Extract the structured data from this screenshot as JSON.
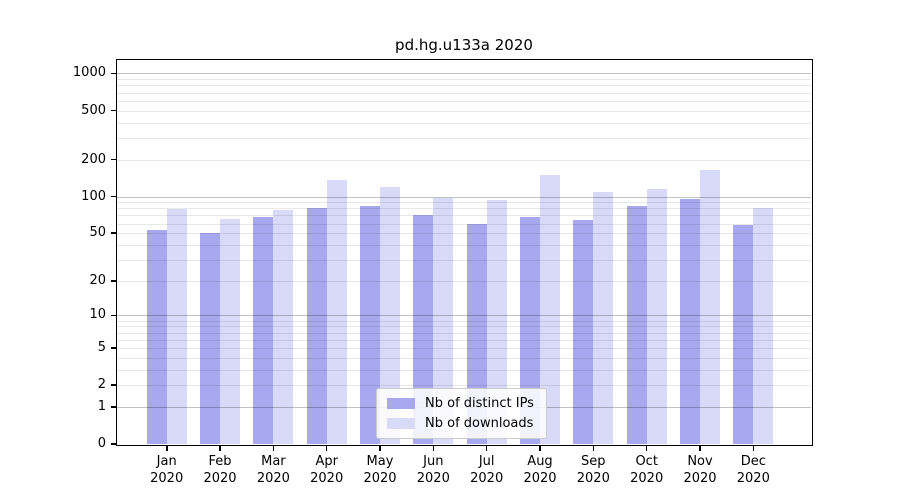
{
  "chart_data": {
    "type": "bar",
    "title": "pd.hg.u133a 2020",
    "year_label": "2020",
    "months": [
      "Jan",
      "Feb",
      "Mar",
      "Apr",
      "May",
      "Jun",
      "Jul",
      "Aug",
      "Sep",
      "Oct",
      "Nov",
      "Dec"
    ],
    "series": [
      {
        "name": "Nb of distinct IPs",
        "color": "#a8a8ee",
        "values": [
          53,
          50,
          68,
          80,
          83,
          71,
          60,
          68,
          64,
          83,
          96,
          58
        ]
      },
      {
        "name": "Nb of downloads",
        "color": "#d9d9f8",
        "values": [
          79,
          66,
          78,
          136,
          119,
          98,
          93,
          149,
          109,
          115,
          165,
          80
        ]
      }
    ],
    "yscale": "log1p",
    "yticks": [
      0,
      1,
      2,
      5,
      10,
      20,
      50,
      100,
      200,
      500,
      1000
    ],
    "ylim": [
      0,
      1280
    ],
    "grid": true,
    "legend_position": "bottom-center",
    "grid_major_values": [
      1,
      10,
      100,
      1000
    ],
    "axis_color": "#000000",
    "major_grid_color": "#c2c2c2",
    "minor_grid_color": "#e9e9e9"
  }
}
